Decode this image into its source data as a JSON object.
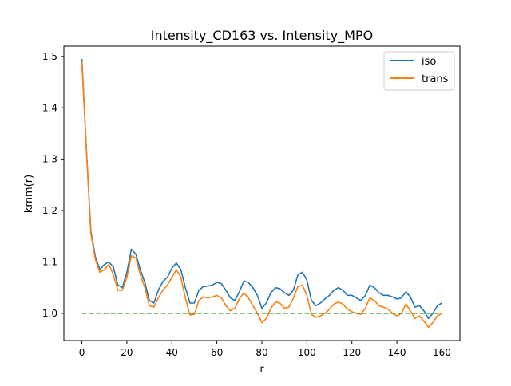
{
  "chart_data": {
    "type": "line",
    "title": "Intensity_CD163 vs. Intensity_MPO",
    "xlabel": "r",
    "ylabel": "kmm(r)",
    "xlim": [
      -8,
      168
    ],
    "ylim": [
      0.947,
      1.52
    ],
    "xticks": [
      0,
      20,
      40,
      60,
      80,
      100,
      120,
      140,
      160
    ],
    "yticks": [
      1.0,
      1.1,
      1.2,
      1.3,
      1.4,
      1.5
    ],
    "xtick_labels": [
      "0",
      "20",
      "40",
      "60",
      "80",
      "100",
      "120",
      "140",
      "160"
    ],
    "ytick_labels": [
      "1.0",
      "1.1",
      "1.2",
      "1.3",
      "1.4",
      "1.5"
    ],
    "grid": false,
    "legend_position": "top-right",
    "series": [
      {
        "name": "iso",
        "color": "#1f77b4",
        "style": "solid",
        "x": [
          0,
          2,
          4,
          6,
          8,
          10,
          12,
          14,
          16,
          18,
          20,
          22,
          24,
          26,
          28,
          30,
          32,
          34,
          36,
          38,
          40,
          42,
          44,
          46,
          48,
          50,
          52,
          54,
          56,
          58,
          60,
          62,
          64,
          66,
          68,
          70,
          72,
          74,
          76,
          78,
          80,
          82,
          84,
          86,
          88,
          90,
          92,
          94,
          96,
          98,
          100,
          102,
          104,
          106,
          108,
          110,
          112,
          114,
          116,
          118,
          120,
          122,
          124,
          126,
          128,
          130,
          132,
          134,
          136,
          138,
          140,
          142,
          144,
          146,
          148,
          150,
          152,
          154,
          156,
          158,
          160
        ],
        "y": [
          1.495,
          1.32,
          1.16,
          1.11,
          1.085,
          1.095,
          1.1,
          1.09,
          1.055,
          1.05,
          1.08,
          1.125,
          1.115,
          1.085,
          1.06,
          1.025,
          1.02,
          1.045,
          1.062,
          1.07,
          1.088,
          1.098,
          1.085,
          1.05,
          1.02,
          1.02,
          1.045,
          1.052,
          1.053,
          1.055,
          1.06,
          1.058,
          1.045,
          1.03,
          1.025,
          1.042,
          1.063,
          1.06,
          1.05,
          1.035,
          1.01,
          1.02,
          1.04,
          1.05,
          1.048,
          1.04,
          1.035,
          1.045,
          1.075,
          1.08,
          1.065,
          1.025,
          1.015,
          1.02,
          1.028,
          1.035,
          1.045,
          1.05,
          1.045,
          1.035,
          1.035,
          1.03,
          1.025,
          1.035,
          1.055,
          1.05,
          1.04,
          1.035,
          1.035,
          1.032,
          1.028,
          1.03,
          1.042,
          1.032,
          1.012,
          1.015,
          1.005,
          0.99,
          1.0,
          1.015,
          1.02
        ]
      },
      {
        "name": "trans",
        "color": "#ff7f0e",
        "style": "solid",
        "x": [
          0,
          2,
          4,
          6,
          8,
          10,
          12,
          14,
          16,
          18,
          20,
          22,
          24,
          26,
          28,
          30,
          32,
          34,
          36,
          38,
          40,
          42,
          44,
          46,
          48,
          50,
          52,
          54,
          56,
          58,
          60,
          62,
          64,
          66,
          68,
          70,
          72,
          74,
          76,
          78,
          80,
          82,
          84,
          86,
          88,
          90,
          92,
          94,
          96,
          98,
          100,
          102,
          104,
          106,
          108,
          110,
          112,
          114,
          116,
          118,
          120,
          122,
          124,
          126,
          128,
          130,
          132,
          134,
          136,
          138,
          140,
          142,
          144,
          146,
          148,
          150,
          152,
          154,
          156,
          158,
          160
        ],
        "y": [
          1.49,
          1.32,
          1.155,
          1.105,
          1.08,
          1.085,
          1.095,
          1.075,
          1.045,
          1.045,
          1.07,
          1.112,
          1.108,
          1.075,
          1.05,
          1.015,
          1.012,
          1.03,
          1.045,
          1.055,
          1.07,
          1.085,
          1.07,
          1.03,
          0.997,
          0.998,
          1.025,
          1.032,
          1.03,
          1.032,
          1.035,
          1.03,
          1.015,
          1.005,
          1.01,
          1.028,
          1.04,
          1.03,
          1.015,
          1.0,
          0.982,
          0.99,
          1.01,
          1.022,
          1.02,
          1.01,
          1.012,
          1.03,
          1.052,
          1.055,
          1.035,
          0.998,
          0.992,
          0.995,
          1.0,
          1.008,
          1.018,
          1.022,
          1.018,
          1.008,
          1.003,
          1.0,
          0.998,
          1.01,
          1.03,
          1.025,
          1.015,
          1.012,
          1.008,
          1.0,
          0.995,
          1.0,
          1.018,
          1.005,
          0.99,
          0.995,
          0.985,
          0.973,
          0.982,
          0.995,
          1.0
        ]
      },
      {
        "name": "",
        "color": "#2ca02c",
        "style": "dashed",
        "x": [
          0,
          160
        ],
        "y": [
          1.0,
          1.0
        ]
      }
    ]
  }
}
